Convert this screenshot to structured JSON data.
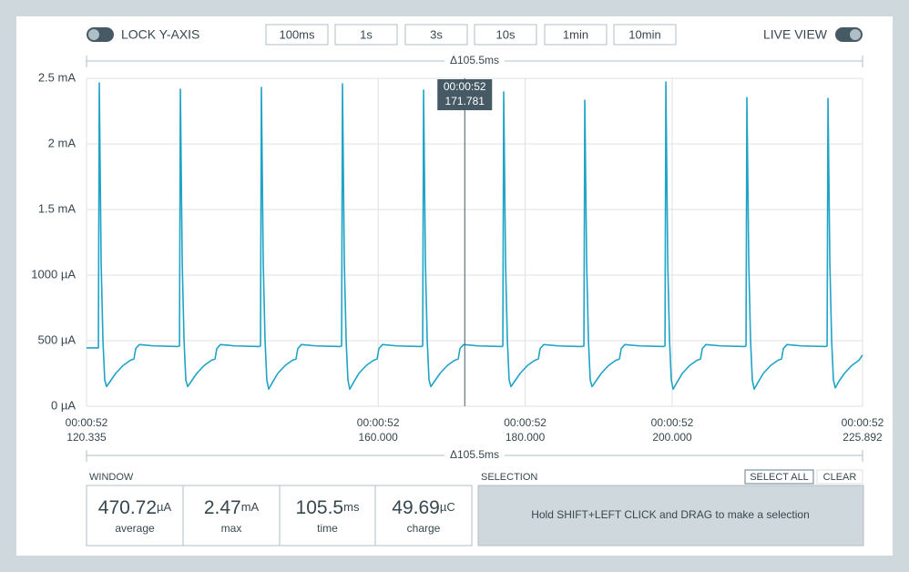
{
  "toolbar": {
    "lock_label": "LOCK Y-AXIS",
    "zoom_buttons": [
      "100ms",
      "1s",
      "3s",
      "10s",
      "1min",
      "10min"
    ],
    "live_label": "LIVE VIEW"
  },
  "chart_data": {
    "type": "line",
    "span_top": "Δ105.5ms",
    "span_bottom": "Δ105.5ms",
    "x": [
      120.34,
      121.95,
      122.07,
      122.32,
      122.57,
      122.81,
      123.06,
      123.56,
      124.3,
      125.29,
      126.28,
      126.78,
      127.03,
      127.52,
      129.5,
      132.73,
      132.98,
      133.1,
      133.35,
      133.6,
      133.84,
      134.09,
      134.59,
      135.33,
      136.32,
      137.31,
      137.81,
      138.06,
      138.55,
      140.53,
      143.76,
      144.0,
      144.12,
      144.37,
      144.62,
      144.86,
      145.11,
      145.61,
      146.35,
      147.34,
      148.33,
      148.83,
      149.08,
      149.57,
      151.55,
      154.78,
      155.03,
      155.15,
      155.4,
      155.65,
      155.89,
      156.14,
      156.64,
      157.38,
      158.37,
      159.36,
      159.86,
      160.11,
      160.6,
      162.58,
      165.81,
      166.06,
      166.18,
      166.43,
      166.68,
      166.92,
      167.17,
      167.67,
      168.41,
      169.4,
      170.39,
      170.89,
      171.14,
      171.63,
      173.61,
      176.84,
      176.96,
      177.08,
      177.33,
      177.58,
      177.82,
      178.07,
      178.57,
      179.31,
      180.3,
      181.29,
      181.79,
      182.04,
      182.53,
      184.51,
      187.74,
      187.99,
      188.11,
      188.36,
      188.61,
      188.85,
      189.1,
      189.6,
      190.34,
      191.33,
      192.32,
      192.82,
      193.07,
      193.56,
      195.54,
      198.77,
      199.02,
      199.14,
      199.39,
      199.64,
      199.88,
      200.13,
      200.63,
      201.37,
      202.36,
      203.35,
      203.85,
      204.1,
      204.59,
      206.57,
      209.8,
      210.04,
      210.16,
      210.41,
      210.66,
      210.9,
      211.15,
      211.65,
      212.39,
      213.38,
      214.37,
      214.87,
      215.12,
      215.61,
      217.59,
      220.82,
      221.07,
      221.19,
      221.44,
      221.69,
      221.93,
      222.18,
      222.68,
      223.42,
      224.41,
      225.4,
      225.89
    ],
    "series": [
      {
        "color": "#1fa3c6",
        "values": [
          445,
          445,
          2465,
          1100,
          500,
          200,
          150,
          190,
          250,
          310,
          350,
          360,
          440,
          470,
          460,
          455,
          460,
          2417,
          1100,
          500,
          200,
          150,
          190,
          250,
          310,
          350,
          360,
          440,
          470,
          460,
          455,
          460,
          2431,
          1100,
          500,
          200,
          130,
          180,
          250,
          310,
          350,
          360,
          440,
          470,
          460,
          455,
          460,
          2458,
          1100,
          500,
          200,
          130,
          180,
          250,
          310,
          350,
          360,
          440,
          470,
          460,
          455,
          460,
          2410,
          1100,
          500,
          200,
          150,
          190,
          250,
          310,
          350,
          360,
          440,
          470,
          460,
          455,
          460,
          2396,
          1100,
          500,
          200,
          150,
          190,
          250,
          310,
          350,
          360,
          440,
          470,
          460,
          455,
          460,
          2333,
          1100,
          500,
          200,
          150,
          190,
          250,
          310,
          350,
          360,
          440,
          470,
          460,
          455,
          460,
          2472,
          1100,
          500,
          200,
          130,
          180,
          250,
          310,
          350,
          360,
          440,
          470,
          460,
          455,
          460,
          2354,
          1100,
          500,
          200,
          130,
          180,
          250,
          310,
          350,
          360,
          440,
          470,
          460,
          455,
          460,
          2347,
          1100,
          500,
          200,
          140,
          190,
          250,
          310,
          350,
          390
        ]
      }
    ],
    "xlim": [
      120.335,
      225.892
    ],
    "xticks": [
      {
        "value": 120.335,
        "label": "120.335",
        "time": "00:00:52"
      },
      {
        "value": 160,
        "label": "160.000",
        "time": "00:00:52"
      },
      {
        "value": 180,
        "label": "180.000",
        "time": "00:00:52"
      },
      {
        "value": 200,
        "label": "200.000",
        "time": "00:00:52"
      },
      {
        "value": 225.892,
        "label": "225.892",
        "time": "00:00:52"
      }
    ],
    "ylim": [
      0,
      2500
    ],
    "yticks": [
      {
        "value": 0,
        "label": "0 µA"
      },
      {
        "value": 500,
        "label": "500 µA"
      },
      {
        "value": 1000,
        "label": "1000 µA"
      },
      {
        "value": 1500,
        "label": "1.5 mA"
      },
      {
        "value": 2000,
        "label": "2 mA"
      },
      {
        "value": 2500,
        "label": "2.5 mA"
      }
    ],
    "grid": true,
    "cursor": {
      "time": "00:00:52",
      "value": 171.781
    }
  },
  "window": {
    "title": "WINDOW",
    "stats": [
      {
        "value": 470.72,
        "unit": "µA",
        "label": "average"
      },
      {
        "value": 2.47,
        "unit": "mA",
        "label": "max"
      },
      {
        "value": 105.5,
        "unit": "ms",
        "label": "time"
      },
      {
        "value": 49.69,
        "unit": "µC",
        "label": "charge"
      }
    ]
  },
  "selection": {
    "title": "SELECTION",
    "buttons": [
      "SELECT ALL",
      "CLEAR"
    ],
    "hint": "Hold SHIFT+LEFT CLICK and DRAG to make a selection"
  }
}
